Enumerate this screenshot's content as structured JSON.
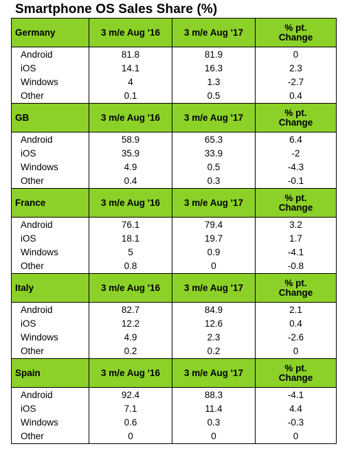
{
  "title": "Smartphone OS Sales Share (%)",
  "columns": {
    "aug16": "3 m/e Aug '16",
    "aug17": "3 m/e Aug '17",
    "change_line1": "% pt.",
    "change_line2": "Change"
  },
  "regions": [
    {
      "name": "Germany",
      "rows": [
        {
          "os": "Android",
          "aug16": "81.8",
          "aug17": "81.9",
          "change": "0"
        },
        {
          "os": "iOS",
          "aug16": "14.1",
          "aug17": "16.3",
          "change": "2.3"
        },
        {
          "os": "Windows",
          "aug16": "4",
          "aug17": "1.3",
          "change": "-2.7"
        },
        {
          "os": "Other",
          "aug16": "0.1",
          "aug17": "0.5",
          "change": "0.4"
        }
      ]
    },
    {
      "name": "GB",
      "rows": [
        {
          "os": "Android",
          "aug16": "58.9",
          "aug17": "65.3",
          "change": "6.4"
        },
        {
          "os": "iOS",
          "aug16": "35.9",
          "aug17": "33.9",
          "change": "-2"
        },
        {
          "os": "Windows",
          "aug16": "4.9",
          "aug17": "0.5",
          "change": "-4.3"
        },
        {
          "os": "Other",
          "aug16": "0.4",
          "aug17": "0.3",
          "change": "-0.1"
        }
      ]
    },
    {
      "name": "France",
      "rows": [
        {
          "os": "Android",
          "aug16": "76.1",
          "aug17": "79.4",
          "change": "3.2"
        },
        {
          "os": "iOS",
          "aug16": "18.1",
          "aug17": "19.7",
          "change": "1.7"
        },
        {
          "os": "Windows",
          "aug16": "5",
          "aug17": "0.9",
          "change": "-4.1"
        },
        {
          "os": "Other",
          "aug16": "0.8",
          "aug17": "0",
          "change": "-0.8"
        }
      ]
    },
    {
      "name": "Italy",
      "rows": [
        {
          "os": "Android",
          "aug16": "82.7",
          "aug17": "84.9",
          "change": "2.1"
        },
        {
          "os": "iOS",
          "aug16": "12.2",
          "aug17": "12.6",
          "change": "0.4"
        },
        {
          "os": "Windows",
          "aug16": "4.9",
          "aug17": "2.3",
          "change": "-2.6"
        },
        {
          "os": "Other",
          "aug16": "0.2",
          "aug17": "0.2",
          "change": "0"
        }
      ]
    },
    {
      "name": "Spain",
      "rows": [
        {
          "os": "Android",
          "aug16": "92.4",
          "aug17": "88.3",
          "change": "-4.1"
        },
        {
          "os": "iOS",
          "aug16": "7.1",
          "aug17": "11.4",
          "change": "4.4"
        },
        {
          "os": "Windows",
          "aug16": "0.6",
          "aug17": "0.3",
          "change": "-0.3"
        },
        {
          "os": "Other",
          "aug16": "0",
          "aug17": "0",
          "change": "0"
        }
      ]
    }
  ],
  "colors": {
    "header_green": "#8cd128",
    "border": "#000000",
    "background": "#ffffff"
  }
}
